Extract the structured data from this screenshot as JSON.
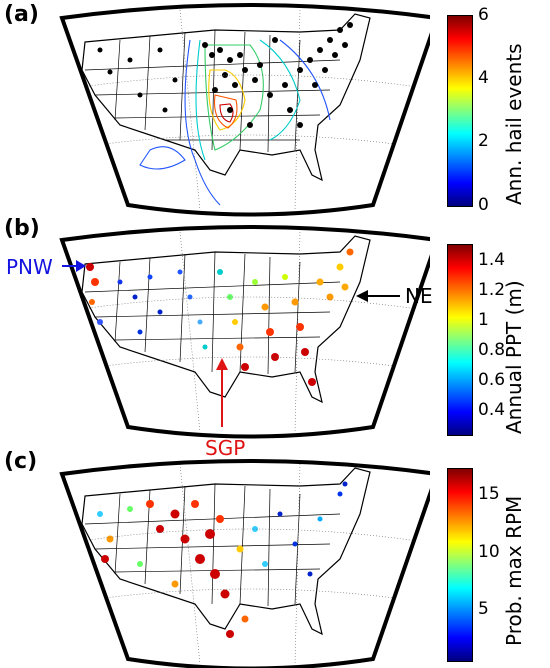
{
  "panels": [
    {
      "label": "(a)",
      "colorbar": {
        "label": "Ann. hail events",
        "ticks": [
          "6",
          "4",
          "2",
          "0"
        ]
      }
    },
    {
      "label": "(b)",
      "colorbar": {
        "label": "Annual PPT (m)",
        "ticks": [
          "1.4",
          "1.2",
          "1",
          "0.8",
          "0.6",
          "0.4"
        ]
      },
      "annotations": {
        "pnw": "PNW",
        "ne": "NE",
        "sgp": "SGP"
      }
    },
    {
      "label": "(c)",
      "colorbar": {
        "label": "Prob. max RPM",
        "ticks": [
          "15",
          "10",
          "5"
        ]
      }
    }
  ],
  "colors": {
    "pnw": "#1414e0",
    "sgp": "#e01414",
    "ne": "#000000"
  }
}
